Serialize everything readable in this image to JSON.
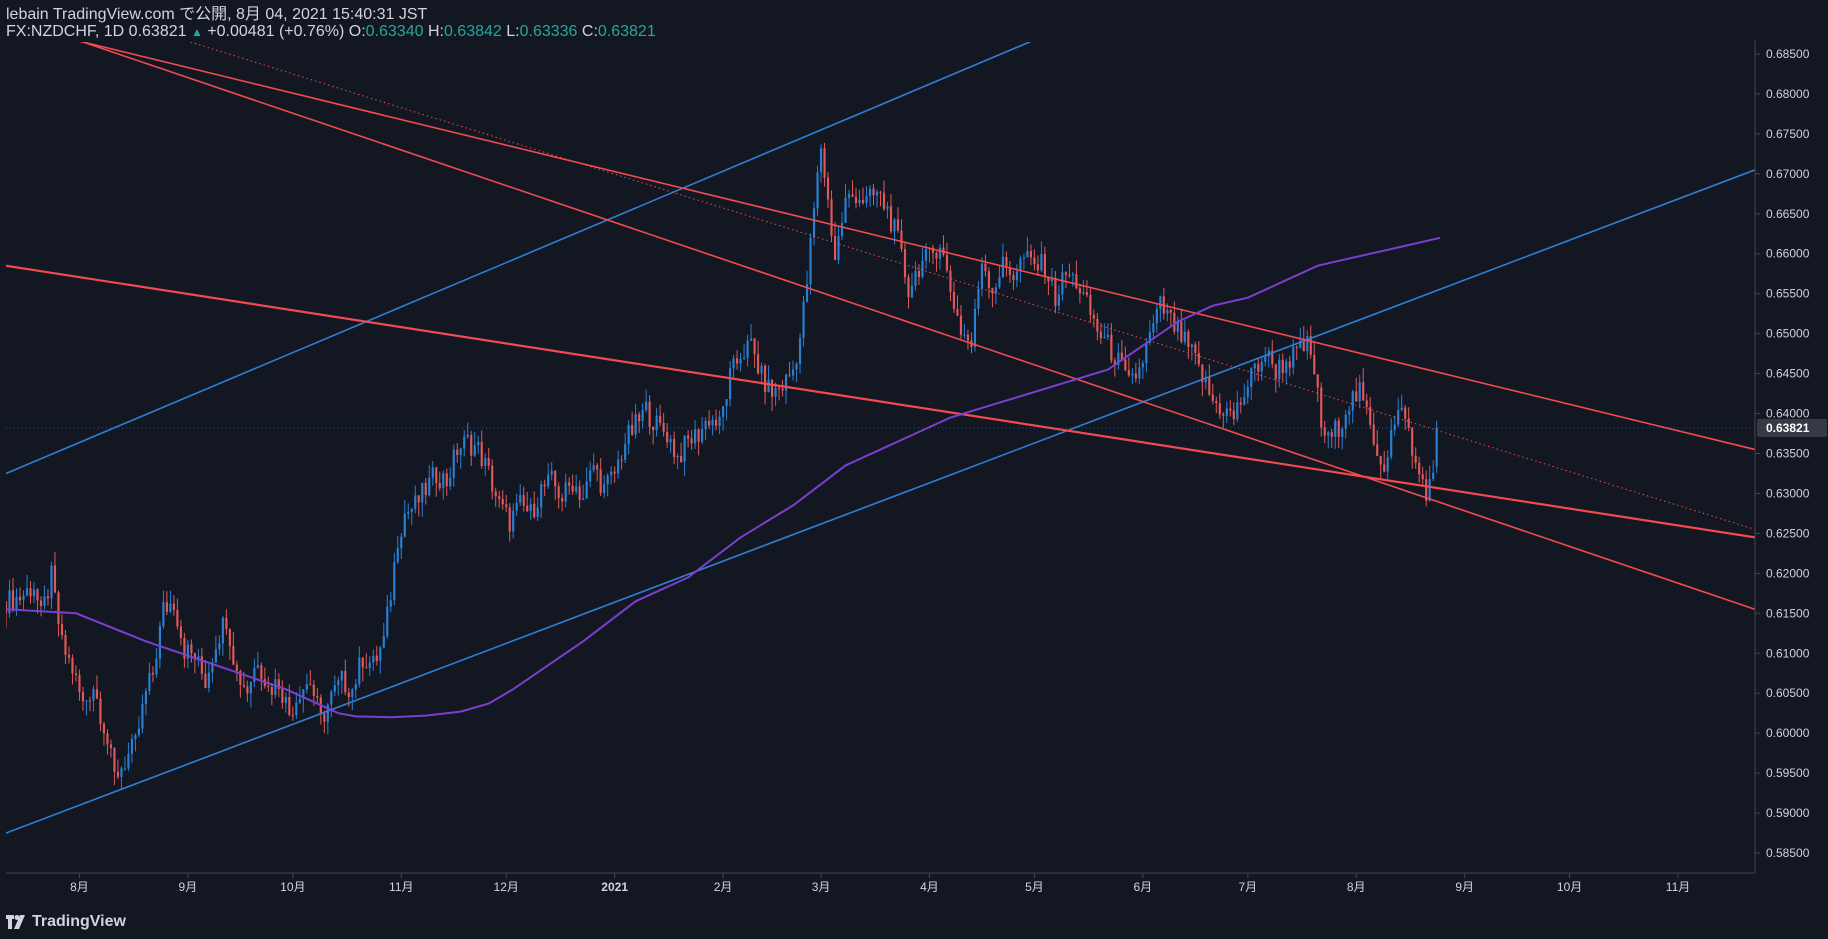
{
  "header": {
    "published": "lebain TradingView.com で公開, 8月 04, 2021 15:40:31 JST",
    "symbol": "FX:NZDCHF, 1D 0.63821",
    "change_arrow": "▲",
    "change": "+0.00481 (+0.76%)",
    "o_label": "O:",
    "o_value": "0.63340",
    "h_label": "H:",
    "h_value": "0.63842",
    "l_label": "L:",
    "l_value": "0.63336",
    "c_label": "C:",
    "c_value": "0.63821"
  },
  "brand": {
    "name": "TradingView",
    "icon": "tradingview-logo-icon"
  },
  "colors": {
    "background": "#131722",
    "grid": "#1e222d",
    "up": "#2a7fd4",
    "down": "#e0585a",
    "ma": "#7b3fd0",
    "blue_line": "#2f7fd6",
    "red_line": "#ef4b50",
    "axis_text": "#d1d4dc",
    "price_badge": "#363a45"
  },
  "chart_data": {
    "type": "candlestick",
    "symbol": "FX:NZDCHF",
    "interval": "1D",
    "ylim": [
      0.5825,
      0.6865
    ],
    "y_ticks": [
      "0.68500",
      "0.68000",
      "0.67500",
      "0.67000",
      "0.66500",
      "0.66000",
      "0.65500",
      "0.65000",
      "0.64500",
      "0.64000",
      "0.63500",
      "0.63000",
      "0.62500",
      "0.62000",
      "0.61500",
      "0.61000",
      "0.60500",
      "0.60000",
      "0.59500",
      "0.59000",
      "0.58500"
    ],
    "x_ticks": [
      {
        "label": "8月",
        "t": 21
      },
      {
        "label": "9月",
        "t": 52
      },
      {
        "label": "10月",
        "t": 82
      },
      {
        "label": "11月",
        "t": 113
      },
      {
        "label": "12月",
        "t": 143
      },
      {
        "label": "2021",
        "t": 174,
        "bold": true
      },
      {
        "label": "2月",
        "t": 205
      },
      {
        "label": "3月",
        "t": 233
      },
      {
        "label": "4月",
        "t": 264
      },
      {
        "label": "5月",
        "t": 294
      },
      {
        "label": "6月",
        "t": 325
      },
      {
        "label": "7月",
        "t": 355
      },
      {
        "label": "8月",
        "t": 386
      },
      {
        "label": "9月",
        "t": 417
      },
      {
        "label": "10月",
        "t": 447
      },
      {
        "label": "11月",
        "t": 478
      }
    ],
    "last_price": "0.63821",
    "last_price_value": 0.63821,
    "close_series": [
      [
        0,
        0.6165
      ],
      [
        4,
        0.617
      ],
      [
        8,
        0.6185
      ],
      [
        10,
        0.6145
      ],
      [
        13,
        0.6195
      ],
      [
        16,
        0.611
      ],
      [
        19,
        0.608
      ],
      [
        22,
        0.6035
      ],
      [
        25,
        0.606
      ],
      [
        28,
        0.601
      ],
      [
        31,
        0.5945
      ],
      [
        34,
        0.5965
      ],
      [
        37,
        0.5985
      ],
      [
        40,
        0.605
      ],
      [
        42,
        0.6075
      ],
      [
        45,
        0.6155
      ],
      [
        48,
        0.6165
      ],
      [
        51,
        0.6105
      ],
      [
        54,
        0.6095
      ],
      [
        57,
        0.6065
      ],
      [
        60,
        0.6115
      ],
      [
        63,
        0.6145
      ],
      [
        66,
        0.6075
      ],
      [
        69,
        0.6055
      ],
      [
        72,
        0.6095
      ],
      [
        75,
        0.6055
      ],
      [
        78,
        0.6065
      ],
      [
        81,
        0.6025
      ],
      [
        84,
        0.6055
      ],
      [
        87,
        0.6065
      ],
      [
        90,
        0.6015
      ],
      [
        93,
        0.6045
      ],
      [
        96,
        0.6065
      ],
      [
        99,
        0.6055
      ],
      [
        102,
        0.6095
      ],
      [
        105,
        0.6085
      ],
      [
        108,
        0.6115
      ],
      [
        110,
        0.6175
      ],
      [
        112,
        0.6245
      ],
      [
        114,
        0.6275
      ],
      [
        117,
        0.6285
      ],
      [
        120,
        0.6305
      ],
      [
        123,
        0.6325
      ],
      [
        126,
        0.6315
      ],
      [
        129,
        0.6355
      ],
      [
        132,
        0.6365
      ],
      [
        135,
        0.6355
      ],
      [
        138,
        0.6325
      ],
      [
        141,
        0.6285
      ],
      [
        144,
        0.6265
      ],
      [
        147,
        0.6285
      ],
      [
        150,
        0.6275
      ],
      [
        153,
        0.6305
      ],
      [
        156,
        0.6315
      ],
      [
        159,
        0.6295
      ],
      [
        162,
        0.6315
      ],
      [
        165,
        0.6295
      ],
      [
        168,
        0.6335
      ],
      [
        171,
        0.6305
      ],
      [
        174,
        0.6325
      ],
      [
        177,
        0.6365
      ],
      [
        180,
        0.6385
      ],
      [
        183,
        0.6405
      ],
      [
        186,
        0.6385
      ],
      [
        189,
        0.6375
      ],
      [
        192,
        0.6345
      ],
      [
        195,
        0.6365
      ],
      [
        198,
        0.6375
      ],
      [
        201,
        0.6395
      ],
      [
        204,
        0.6385
      ],
      [
        207,
        0.6445
      ],
      [
        210,
        0.6475
      ],
      [
        213,
        0.6485
      ],
      [
        216,
        0.6445
      ],
      [
        219,
        0.6425
      ],
      [
        222,
        0.6435
      ],
      [
        225,
        0.6455
      ],
      [
        227,
        0.6495
      ],
      [
        229,
        0.6565
      ],
      [
        231,
        0.6655
      ],
      [
        233,
        0.6735
      ],
      [
        235,
        0.6665
      ],
      [
        237,
        0.6595
      ],
      [
        240,
        0.6665
      ],
      [
        243,
        0.6675
      ],
      [
        246,
        0.6665
      ],
      [
        249,
        0.6675
      ],
      [
        252,
        0.6655
      ],
      [
        255,
        0.6615
      ],
      [
        258,
        0.6555
      ],
      [
        261,
        0.6585
      ],
      [
        264,
        0.6595
      ],
      [
        267,
        0.6615
      ],
      [
        270,
        0.6555
      ],
      [
        273,
        0.6505
      ],
      [
        276,
        0.6485
      ],
      [
        279,
        0.6595
      ],
      [
        282,
        0.6555
      ],
      [
        285,
        0.6585
      ],
      [
        288,
        0.6575
      ],
      [
        291,
        0.6595
      ],
      [
        294,
        0.6585
      ],
      [
        297,
        0.6585
      ],
      [
        300,
        0.6545
      ],
      [
        303,
        0.6575
      ],
      [
        306,
        0.6565
      ],
      [
        309,
        0.6535
      ],
      [
        312,
        0.6505
      ],
      [
        315,
        0.6485
      ],
      [
        318,
        0.6465
      ],
      [
        321,
        0.6435
      ],
      [
        324,
        0.6455
      ],
      [
        327,
        0.6495
      ],
      [
        330,
        0.6535
      ],
      [
        333,
        0.6515
      ],
      [
        336,
        0.6495
      ],
      [
        339,
        0.6475
      ],
      [
        342,
        0.6445
      ],
      [
        345,
        0.6415
      ],
      [
        348,
        0.6405
      ],
      [
        351,
        0.6395
      ],
      [
        354,
        0.6425
      ],
      [
        357,
        0.6455
      ],
      [
        360,
        0.6475
      ],
      [
        363,
        0.6455
      ],
      [
        366,
        0.6465
      ],
      [
        369,
        0.6475
      ],
      [
        372,
        0.6485
      ],
      [
        374,
        0.6455
      ],
      [
        376,
        0.6385
      ],
      [
        378,
        0.6365
      ],
      [
        381,
        0.6385
      ],
      [
        384,
        0.6415
      ],
      [
        387,
        0.6425
      ],
      [
        390,
        0.6385
      ],
      [
        392,
        0.6355
      ],
      [
        394,
        0.6335
      ],
      [
        396,
        0.6375
      ],
      [
        398,
        0.6395
      ],
      [
        400,
        0.6405
      ],
      [
        402,
        0.6345
      ],
      [
        404,
        0.6325
      ],
      [
        406,
        0.6305
      ],
      [
        408,
        0.6315
      ],
      [
        409,
        0.63821
      ]
    ],
    "ma_series": [
      [
        0,
        0.6155
      ],
      [
        20,
        0.615
      ],
      [
        40,
        0.6115
      ],
      [
        60,
        0.6085
      ],
      [
        80,
        0.6055
      ],
      [
        90,
        0.6035
      ],
      [
        95,
        0.6025
      ],
      [
        100,
        0.6021
      ],
      [
        110,
        0.602
      ],
      [
        120,
        0.6022
      ],
      [
        130,
        0.6027
      ],
      [
        138,
        0.6037
      ],
      [
        145,
        0.6055
      ],
      [
        155,
        0.6085
      ],
      [
        165,
        0.6115
      ],
      [
        180,
        0.6165
      ],
      [
        195,
        0.6195
      ],
      [
        210,
        0.6245
      ],
      [
        225,
        0.6285
      ],
      [
        240,
        0.6335
      ],
      [
        255,
        0.6365
      ],
      [
        270,
        0.6395
      ],
      [
        285,
        0.6415
      ],
      [
        300,
        0.6435
      ],
      [
        315,
        0.6455
      ],
      [
        325,
        0.6485
      ],
      [
        335,
        0.6515
      ],
      [
        345,
        0.6535
      ],
      [
        355,
        0.6545
      ],
      [
        365,
        0.6565
      ],
      [
        375,
        0.6585
      ],
      [
        385,
        0.6595
      ],
      [
        395,
        0.6605
      ],
      [
        405,
        0.6615
      ],
      [
        410,
        0.662
      ]
    ],
    "trend_lines": [
      {
        "name": "blue-upper-channel-line",
        "color": "blue",
        "t1": 0,
        "p1": 0.6325,
        "t2": 233,
        "p2": 0.6755,
        "extend": "right-clip-to-top"
      },
      {
        "name": "blue-lower-channel-line",
        "color": "blue",
        "t1": 0,
        "p1": 0.5875,
        "t2": 500,
        "p2": 0.6705
      },
      {
        "name": "red-descending-upper-line",
        "color": "red",
        "t1": 22,
        "p1": 0.6865,
        "t2": 500,
        "p2": 0.6355
      },
      {
        "name": "red-descending-lower-line",
        "color": "red",
        "t1": 22,
        "p1": 0.6865,
        "t2": 500,
        "p2": 0.6155,
        "offset": -0.0
      },
      {
        "name": "red-flat-support-line",
        "color": "red",
        "t1": 0,
        "p1": 0.6585,
        "t2": 500,
        "p2": 0.6245,
        "bold": true
      },
      {
        "name": "red-dotted-midline",
        "color": "red",
        "t1": 60,
        "p1": 0.6855,
        "t2": 500,
        "p2": 0.6255,
        "dotted": true
      }
    ]
  }
}
